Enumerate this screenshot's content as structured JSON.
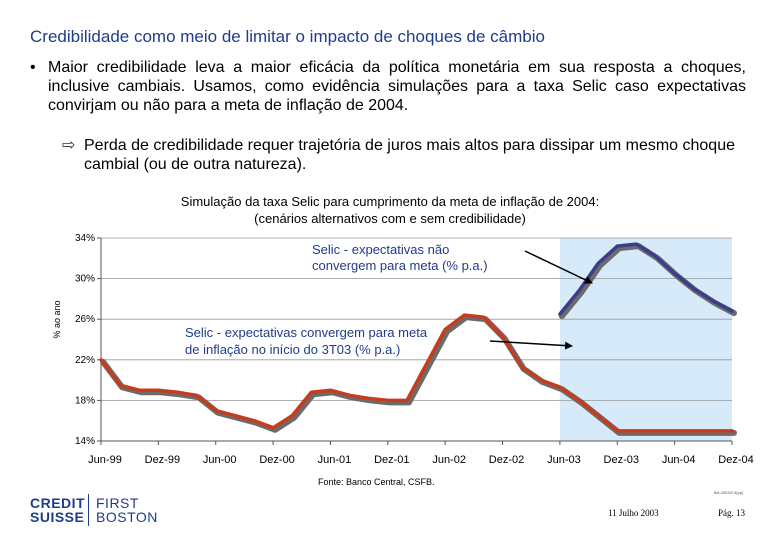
{
  "header": {
    "title": "Credibilidade como meio de limitar o impacto de choques de câmbio"
  },
  "bullets": {
    "main": "Maior credibilidade leva a maior eficácia da política monetária em sua resposta a choques, inclusive cambiais. Usamos, como evidência simulações para a taxa Selic caso expectativas convirjam ou não para a meta de inflação de 2004.",
    "sub": "Perda de credibilidade requer trajetória de juros mais altos para dissipar um mesmo choque cambial (ou de outra natureza).",
    "main_icon": "bullet-dot",
    "sub_icon": "arrow-right-outline"
  },
  "chart_data": {
    "type": "line",
    "title": "Simulação da taxa Selic para cumprimento da meta de inflação de 2004: (cenários alternativos com e sem credibilidade)",
    "title_lines": [
      "Simulação da taxa Selic para cumprimento da meta de inflação de 2004:",
      "(cenários alternativos com e sem credibilidade)"
    ],
    "ylabel": "% ao ano",
    "ylim": [
      14,
      34
    ],
    "yticks": [
      "14%",
      "18%",
      "22%",
      "26%",
      "30%",
      "34%"
    ],
    "ytick_values": [
      14,
      18,
      22,
      26,
      30,
      34
    ],
    "xlabels": [
      "Jun-99",
      "Dez-99",
      "Jun-00",
      "Dez-00",
      "Jun-01",
      "Dez-01",
      "Jun-02",
      "Dez-02",
      "Jun-03",
      "Dez-03",
      "Jun-04",
      "Dez-04"
    ],
    "x_index_range": [
      0,
      66
    ],
    "shaded_from_index": 48,
    "series": [
      {
        "name": "Selic - expectativas não convergem para meta (% p.a.)",
        "label_lines": [
          "Selic - expectativas não",
          "convergem para meta (% p.a.)"
        ],
        "color": "#3c3c8c",
        "x": [
          48,
          50,
          52,
          54,
          56,
          58,
          60,
          62,
          64,
          66
        ],
        "values": [
          26.5,
          28.8,
          31.5,
          33.2,
          33.4,
          32.2,
          30.5,
          29.0,
          27.8,
          26.8
        ]
      },
      {
        "name": "Selic - expectativas convergem para meta de inflação no início do 3T03 (% p.a.)",
        "label_lines": [
          "Selic - expectativas convergem para meta",
          "de inflação no início do 3T03  (% p.a.)"
        ],
        "color": "#c83c1e",
        "x": [
          0,
          2,
          4,
          6,
          8,
          10,
          12,
          14,
          16,
          18,
          20,
          22,
          24,
          26,
          28,
          30,
          32,
          34,
          36,
          38,
          40,
          42,
          44,
          46,
          48,
          50,
          52,
          54,
          56,
          58,
          60,
          62,
          64,
          66
        ],
        "values": [
          22.0,
          19.5,
          19.0,
          19.0,
          18.8,
          18.5,
          17.0,
          16.5,
          16.0,
          15.3,
          16.5,
          18.8,
          19.0,
          18.5,
          18.2,
          18.0,
          18.0,
          21.5,
          25.0,
          26.4,
          26.2,
          24.3,
          21.3,
          20.0,
          19.3,
          18.0,
          16.5,
          15.0,
          15.0,
          15.0,
          15.0,
          15.0,
          15.0,
          15.0
        ]
      }
    ]
  },
  "footer": {
    "source": "Fonte: Banco Central, CSFB.",
    "logo_left": [
      "CREDIT",
      "SUISSE"
    ],
    "logo_right": [
      "FIRST",
      "BOSTON"
    ],
    "small_code": "BA-2003/0 5(pp)",
    "date": "11 Julho 2003",
    "page": "Pág. 13"
  },
  "colors": {
    "title": "#1f3c8c",
    "shade": "#d6eafa",
    "axis": "#999999"
  }
}
